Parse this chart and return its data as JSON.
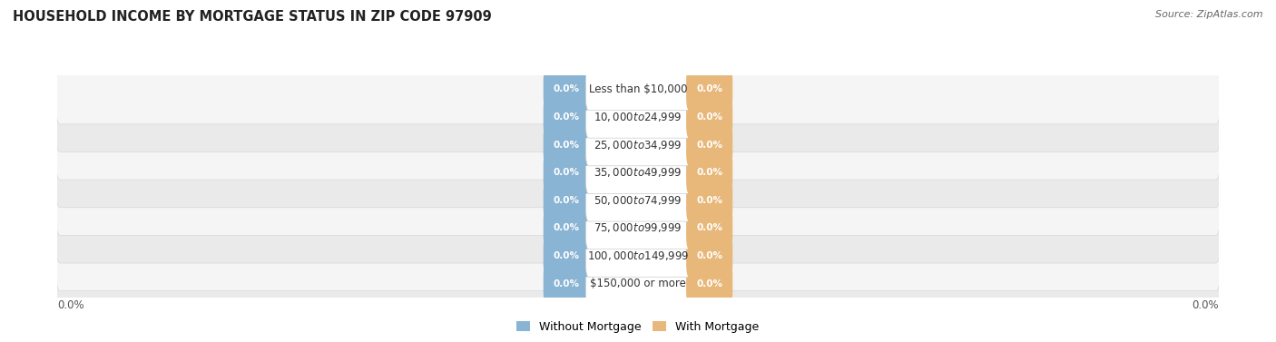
{
  "title": "HOUSEHOLD INCOME BY MORTGAGE STATUS IN ZIP CODE 97909",
  "source": "Source: ZipAtlas.com",
  "categories": [
    "Less than $10,000",
    "$10,000 to $24,999",
    "$25,000 to $34,999",
    "$35,000 to $49,999",
    "$50,000 to $74,999",
    "$75,000 to $99,999",
    "$100,000 to $149,999",
    "$150,000 or more"
  ],
  "without_mortgage": [
    0.0,
    0.0,
    0.0,
    0.0,
    0.0,
    0.0,
    0.0,
    0.0
  ],
  "with_mortgage": [
    0.0,
    0.0,
    0.0,
    0.0,
    0.0,
    0.0,
    0.0,
    0.0
  ],
  "without_mortgage_color": "#8ab4d4",
  "with_mortgage_color": "#e8b87a",
  "row_bg_colors": [
    "#f5f5f5",
    "#eaeaea"
  ],
  "row_border_color": "#d8d8d8",
  "center_label_color": "#333333",
  "figsize": [
    14.06,
    3.77
  ],
  "dpi": 100,
  "title_fontsize": 10.5,
  "source_fontsize": 8,
  "label_fontsize": 7.5,
  "category_fontsize": 8.5,
  "axis_label": "0.0%",
  "x_range": 100
}
